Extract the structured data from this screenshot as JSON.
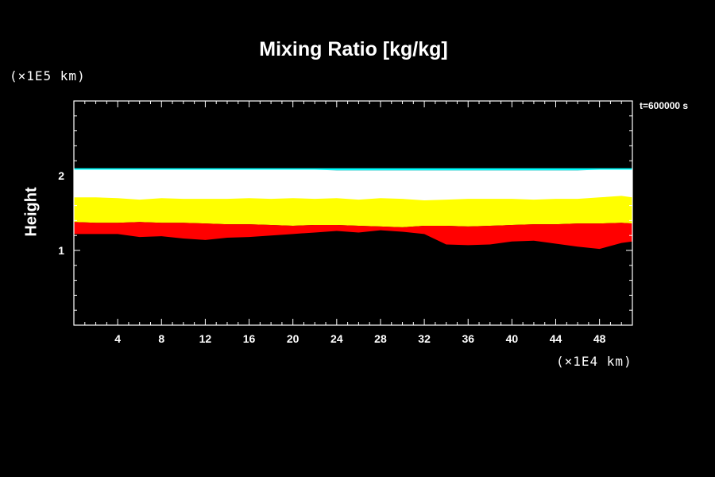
{
  "chart_data": {
    "type": "area",
    "title": "Mixing Ratio [kg/kg]",
    "ylabel": "Height",
    "y_unit": "(×1E5 km)",
    "x_unit": "(×1E4 km)",
    "time_label": "t=600000 s",
    "xlim": [
      0,
      51
    ],
    "ylim": [
      0,
      3
    ],
    "x_ticks": [
      4,
      8,
      12,
      16,
      20,
      24,
      28,
      32,
      36,
      40,
      44,
      48
    ],
    "y_ticks": [
      1,
      2
    ],
    "x": [
      0,
      2,
      4,
      6,
      8,
      10,
      12,
      14,
      16,
      18,
      20,
      22,
      24,
      26,
      28,
      30,
      32,
      34,
      36,
      38,
      40,
      42,
      44,
      46,
      48,
      50,
      51
    ],
    "bands": [
      {
        "color": "#00ffff",
        "top": [
          2.1,
          2.1,
          2.1,
          2.1,
          2.1,
          2.1,
          2.1,
          2.1,
          2.1,
          2.1,
          2.1,
          2.1,
          2.1,
          2.1,
          2.1,
          2.1,
          2.1,
          2.1,
          2.1,
          2.1,
          2.1,
          2.1,
          2.1,
          2.1,
          2.1,
          2.1,
          2.1
        ],
        "bottom": [
          2.07,
          2.07,
          2.07,
          2.07,
          2.07,
          2.07,
          2.07,
          2.07,
          2.07,
          2.07,
          2.07,
          2.07,
          2.07,
          2.07,
          2.07,
          2.07,
          2.07,
          2.07,
          2.07,
          2.07,
          2.07,
          2.07,
          2.07,
          2.07,
          2.07,
          2.07,
          2.07
        ]
      },
      {
        "color": "#ffffff",
        "top": [
          2.08,
          2.08,
          2.08,
          2.08,
          2.08,
          2.08,
          2.08,
          2.08,
          2.08,
          2.08,
          2.08,
          2.08,
          2.07,
          2.07,
          2.07,
          2.07,
          2.07,
          2.07,
          2.07,
          2.07,
          2.07,
          2.07,
          2.07,
          2.07,
          2.08,
          2.08,
          2.08
        ],
        "bottom": [
          1.7,
          1.7,
          1.69,
          1.67,
          1.69,
          1.68,
          1.68,
          1.68,
          1.69,
          1.68,
          1.69,
          1.68,
          1.69,
          1.67,
          1.69,
          1.68,
          1.66,
          1.67,
          1.68,
          1.68,
          1.68,
          1.67,
          1.68,
          1.68,
          1.7,
          1.72,
          1.7
        ]
      },
      {
        "color": "#ffff00",
        "top": [
          1.71,
          1.71,
          1.7,
          1.68,
          1.7,
          1.69,
          1.69,
          1.69,
          1.7,
          1.69,
          1.7,
          1.69,
          1.7,
          1.68,
          1.7,
          1.69,
          1.67,
          1.68,
          1.69,
          1.69,
          1.69,
          1.68,
          1.69,
          1.69,
          1.71,
          1.73,
          1.71
        ],
        "bottom": [
          1.38,
          1.37,
          1.37,
          1.38,
          1.37,
          1.37,
          1.36,
          1.35,
          1.35,
          1.34,
          1.33,
          1.34,
          1.34,
          1.33,
          1.32,
          1.31,
          1.33,
          1.33,
          1.32,
          1.33,
          1.34,
          1.35,
          1.35,
          1.36,
          1.36,
          1.37,
          1.36
        ]
      },
      {
        "color": "#ff0000",
        "top": [
          1.38,
          1.37,
          1.37,
          1.38,
          1.37,
          1.37,
          1.36,
          1.35,
          1.35,
          1.34,
          1.33,
          1.34,
          1.34,
          1.33,
          1.32,
          1.31,
          1.33,
          1.33,
          1.32,
          1.33,
          1.34,
          1.35,
          1.35,
          1.36,
          1.36,
          1.37,
          1.36
        ],
        "bottom": [
          1.22,
          1.22,
          1.22,
          1.18,
          1.19,
          1.16,
          1.14,
          1.17,
          1.18,
          1.2,
          1.22,
          1.24,
          1.26,
          1.24,
          1.27,
          1.25,
          1.22,
          1.08,
          1.07,
          1.08,
          1.12,
          1.13,
          1.09,
          1.05,
          1.02,
          1.1,
          1.12
        ]
      }
    ],
    "grid": false,
    "legend": "none"
  }
}
